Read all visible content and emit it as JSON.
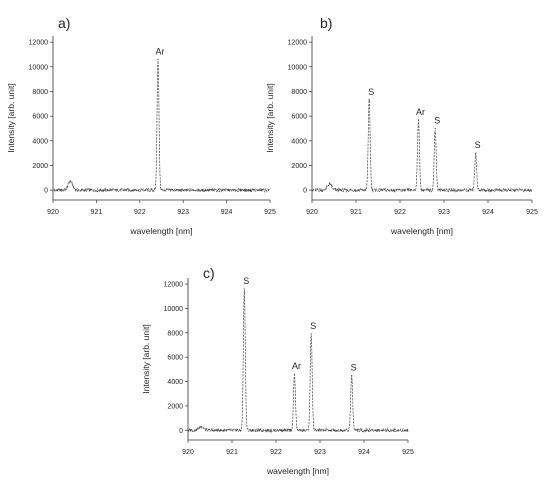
{
  "chart_data": [
    {
      "panel": "a)",
      "type": "line",
      "xlabel": "wavelength [nm]",
      "ylabel": "Intensity [arb. unit]",
      "xlim": [
        920,
        925
      ],
      "ylim": [
        -800,
        12500
      ],
      "xticks": [
        920,
        921,
        922,
        923,
        924,
        925
      ],
      "yticks": [
        0,
        2000,
        4000,
        6000,
        8000,
        10000,
        12000
      ],
      "baseline": 0,
      "peaks": [
        {
          "x": 920.4,
          "y": 700,
          "width": 0.05,
          "label": ""
        },
        {
          "x": 922.42,
          "y": 10600,
          "width": 0.022,
          "label": "Ar"
        }
      ]
    },
    {
      "panel": "b)",
      "type": "line",
      "xlabel": "wavelength [nm]",
      "ylabel": "Intensity [arb. unit]",
      "xlim": [
        920,
        925
      ],
      "ylim": [
        -800,
        12500
      ],
      "xticks": [
        920,
        921,
        922,
        923,
        924,
        925
      ],
      "yticks": [
        0,
        2000,
        4000,
        6000,
        8000,
        10000,
        12000
      ],
      "baseline": 0,
      "peaks": [
        {
          "x": 920.4,
          "y": 500,
          "width": 0.05,
          "label": ""
        },
        {
          "x": 921.3,
          "y": 7300,
          "width": 0.022,
          "label": "S"
        },
        {
          "x": 922.42,
          "y": 5700,
          "width": 0.022,
          "label": "Ar"
        },
        {
          "x": 922.8,
          "y": 5000,
          "width": 0.022,
          "label": "S"
        },
        {
          "x": 923.72,
          "y": 3000,
          "width": 0.022,
          "label": "S"
        }
      ]
    },
    {
      "panel": "c)",
      "type": "line",
      "xlabel": "wavelength [nm]",
      "ylabel": "Intensity [arb. unit]",
      "xlim": [
        920,
        925
      ],
      "ylim": [
        -800,
        12500
      ],
      "xticks": [
        920,
        921,
        922,
        923,
        924,
        925
      ],
      "yticks": [
        0,
        2000,
        4000,
        6000,
        8000,
        10000,
        12000
      ],
      "baseline": 0,
      "peaks": [
        {
          "x": 920.3,
          "y": 300,
          "width": 0.05,
          "label": ""
        },
        {
          "x": 921.28,
          "y": 11600,
          "width": 0.022,
          "label": "S"
        },
        {
          "x": 922.42,
          "y": 4600,
          "width": 0.022,
          "label": "Ar"
        },
        {
          "x": 922.8,
          "y": 7900,
          "width": 0.022,
          "label": "S"
        },
        {
          "x": 923.72,
          "y": 4500,
          "width": 0.022,
          "label": "S"
        }
      ]
    }
  ]
}
